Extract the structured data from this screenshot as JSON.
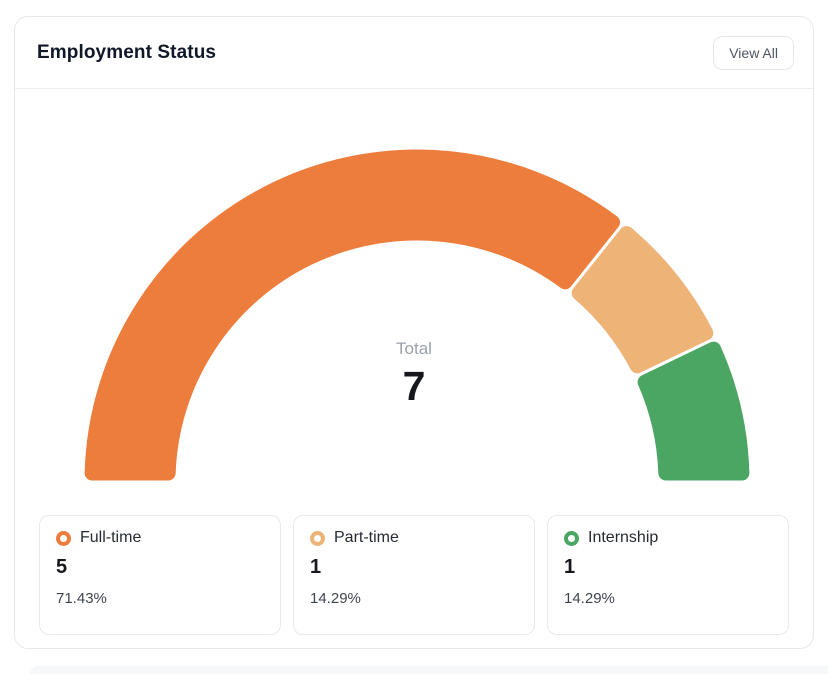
{
  "card": {
    "title": "Employment Status",
    "view_all_label": "View All"
  },
  "chart_data": {
    "type": "pie",
    "subtype": "half-donut-gauge",
    "title": "Employment Status",
    "categories": [
      "Full-time",
      "Part-time",
      "Internship"
    ],
    "values": [
      5,
      1,
      1
    ],
    "percentages": [
      "71.43%",
      "14.29%",
      "14.29%"
    ],
    "colors": [
      "#ED7D3C",
      "#EDB377",
      "#4BA663"
    ],
    "total": 7,
    "center_label": "Total",
    "center_value": "7",
    "start_angle": 180,
    "end_angle": 0,
    "segment_border_color": "#ffffff",
    "legend_position": "bottom"
  },
  "legend": {
    "items": [
      {
        "label": "Full-time",
        "count": "5",
        "percent": "71.43%",
        "color": "#ED7D3C"
      },
      {
        "label": "Part-time",
        "count": "1",
        "percent": "14.29%",
        "color": "#EDB377"
      },
      {
        "label": "Internship",
        "count": "1",
        "percent": "14.29%",
        "color": "#4BA663"
      }
    ]
  }
}
